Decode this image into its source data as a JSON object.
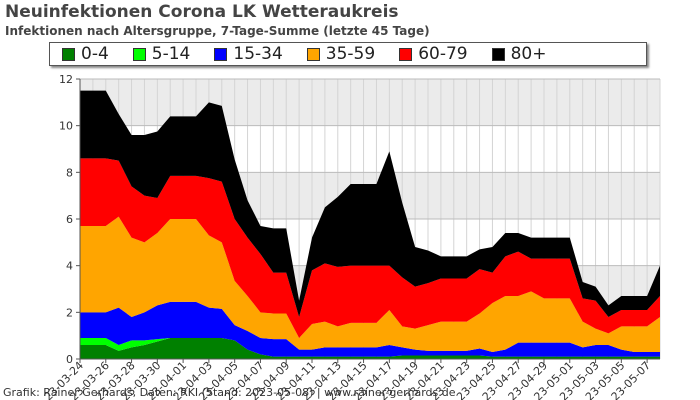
{
  "title": "Neuinfektionen Corona LK Wetteraukreis",
  "subtitle": "Infektionen nach Altersgruppe, 7-Tage-Summe (letzte 45 Tage)",
  "footer": "Grafik: Rainer Gerhards, Daten: RKI (Stand: 2023-05-08) | www.rainer-gerhards.de",
  "chart_data": {
    "type": "area",
    "stacked": true,
    "title": "Neuinfektionen Corona LK Wetteraukreis",
    "subtitle": "Infektionen nach Altersgruppe, 7-Tage-Summe (letzte 45 Tage)",
    "xlabel": "",
    "ylabel": "",
    "ylim": [
      0,
      12
    ],
    "yticks": [
      0,
      2,
      4,
      6,
      8,
      10,
      12
    ],
    "grid": true,
    "legend_position": "top",
    "x": [
      "2023-03-24",
      "2023-03-25",
      "2023-03-26",
      "2023-03-27",
      "2023-03-28",
      "2023-03-29",
      "2023-03-30",
      "2023-03-31",
      "2023-04-01",
      "2023-04-02",
      "2023-04-03",
      "2023-04-04",
      "2023-04-05",
      "2023-04-06",
      "2023-04-07",
      "2023-04-08",
      "2023-04-09",
      "2023-04-10",
      "2023-04-11",
      "2023-04-12",
      "2023-04-13",
      "2023-04-14",
      "2023-04-15",
      "2023-04-16",
      "2023-04-17",
      "2023-04-18",
      "2023-04-19",
      "2023-04-20",
      "2023-04-21",
      "2023-04-22",
      "2023-04-23",
      "2023-04-24",
      "2023-04-25",
      "2023-04-26",
      "2023-04-27",
      "2023-04-28",
      "2023-04-29",
      "2023-04-30",
      "2023-05-01",
      "2023-05-02",
      "2023-05-03",
      "2023-05-04",
      "2023-05-05",
      "2023-05-06",
      "2023-05-07",
      "2023-05-08"
    ],
    "xtick_labels": [
      "23-03-24",
      "23-03-26",
      "23-03-28",
      "23-03-30",
      "23-04-01",
      "23-04-03",
      "23-04-05",
      "23-04-07",
      "23-04-09",
      "23-04-11",
      "23-04-13",
      "23-04-15",
      "23-04-17",
      "23-04-19",
      "23-04-21",
      "23-04-23",
      "23-04-25",
      "23-04-27",
      "23-04-29",
      "23-05-01",
      "23-05-03",
      "23-05-05",
      "23-05-07"
    ],
    "series": [
      {
        "name": "0-4",
        "color": "#008000",
        "values": [
          0.6,
          0.6,
          0.6,
          0.35,
          0.5,
          0.6,
          0.75,
          0.9,
          0.9,
          0.9,
          0.9,
          0.9,
          0.8,
          0.4,
          0.2,
          0.1,
          0.1,
          0.1,
          0.1,
          0.1,
          0.1,
          0.1,
          0.1,
          0.1,
          0.1,
          0.15,
          0.15,
          0.15,
          0.15,
          0.15,
          0.15,
          0.15,
          0.1,
          0.1,
          0.1,
          0.1,
          0.1,
          0.1,
          0.1,
          0.1,
          0.1,
          0.1,
          0.1,
          0.1,
          0.1,
          0.1
        ]
      },
      {
        "name": "5-14",
        "color": "#00ff00",
        "values": [
          0.3,
          0.3,
          0.3,
          0.25,
          0.3,
          0.2,
          0.1,
          0,
          0,
          0,
          0,
          0,
          0,
          0,
          0,
          0,
          0,
          0,
          0,
          0,
          0,
          0,
          0,
          0,
          0,
          0,
          0,
          0,
          0,
          0,
          0,
          0,
          0,
          0,
          0,
          0,
          0,
          0,
          0,
          0,
          0,
          0,
          0,
          0,
          0,
          0
        ]
      },
      {
        "name": "15-34",
        "color": "#0000ff",
        "values": [
          1.1,
          1.1,
          1.1,
          1.6,
          1.0,
          1.2,
          1.45,
          1.55,
          1.55,
          1.55,
          1.3,
          1.25,
          0.65,
          0.8,
          0.7,
          0.75,
          0.75,
          0.3,
          0.3,
          0.4,
          0.4,
          0.4,
          0.4,
          0.4,
          0.5,
          0.35,
          0.25,
          0.2,
          0.2,
          0.2,
          0.2,
          0.3,
          0.2,
          0.3,
          0.6,
          0.6,
          0.6,
          0.6,
          0.6,
          0.4,
          0.5,
          0.5,
          0.3,
          0.2,
          0.2,
          0.2
        ]
      },
      {
        "name": "35-59",
        "color": "#ffa500",
        "values": [
          3.7,
          3.7,
          3.7,
          3.9,
          3.4,
          3.0,
          3.1,
          3.55,
          3.55,
          3.55,
          3.1,
          2.85,
          1.9,
          1.5,
          1.1,
          1.1,
          1.1,
          0.5,
          1.1,
          1.1,
          0.9,
          1.05,
          1.05,
          1.05,
          1.5,
          0.9,
          0.9,
          1.1,
          1.25,
          1.25,
          1.25,
          1.5,
          2.1,
          2.3,
          2.0,
          2.2,
          1.9,
          1.9,
          1.9,
          1.1,
          0.7,
          0.5,
          1.0,
          1.1,
          1.1,
          1.5
        ]
      },
      {
        "name": "60-79",
        "color": "#ff0000",
        "values": [
          2.9,
          2.9,
          2.9,
          2.4,
          2.2,
          2.0,
          1.5,
          1.85,
          1.85,
          1.85,
          2.45,
          2.6,
          2.65,
          2.5,
          2.5,
          1.75,
          1.75,
          0.9,
          2.3,
          2.5,
          2.55,
          2.45,
          2.45,
          2.45,
          1.9,
          2.1,
          1.8,
          1.8,
          1.85,
          1.85,
          1.85,
          1.9,
          1.3,
          1.7,
          1.9,
          1.4,
          1.7,
          1.7,
          1.7,
          1.0,
          1.2,
          0.7,
          0.7,
          0.7,
          0.7,
          0.9
        ]
      },
      {
        "name": "80+",
        "color": "#000000",
        "values": [
          2.9,
          2.9,
          2.9,
          2.0,
          2.2,
          2.6,
          2.85,
          2.55,
          2.55,
          2.55,
          3.25,
          3.25,
          2.55,
          1.6,
          1.2,
          1.9,
          1.9,
          0.7,
          1.4,
          2.4,
          3.0,
          3.5,
          3.5,
          3.5,
          4.9,
          3.2,
          1.7,
          1.4,
          0.95,
          0.95,
          0.95,
          0.85,
          1.1,
          1.0,
          0.8,
          0.9,
          0.9,
          0.9,
          0.9,
          0.7,
          0.6,
          0.5,
          0.6,
          0.6,
          0.6,
          1.3
        ]
      }
    ]
  }
}
